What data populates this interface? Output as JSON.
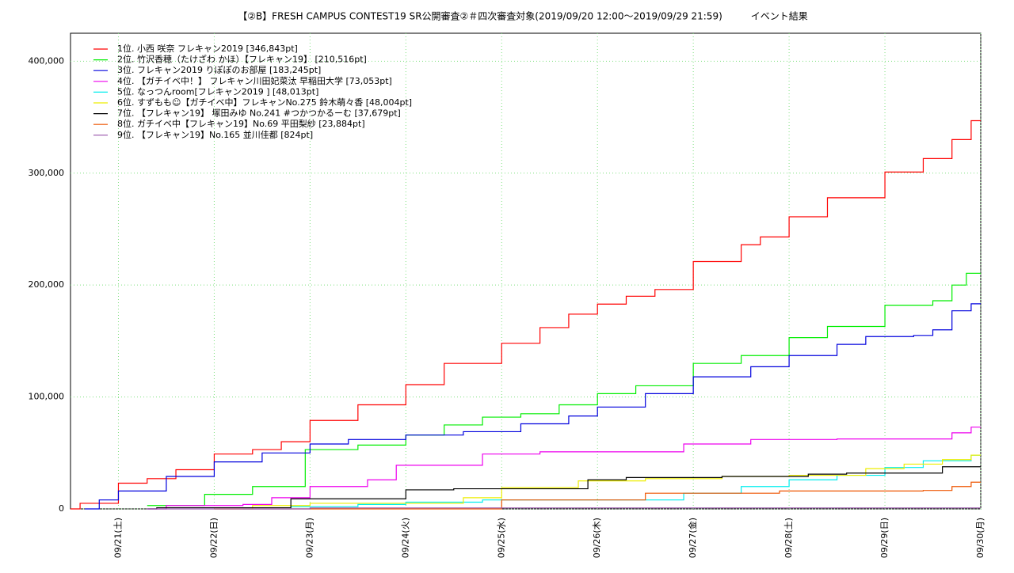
{
  "chart_data": {
    "type": "line",
    "title": "【②B】FRESH CAMPUS CONTEST19 SR公開審査②＃四次審査対象(2019/09/20 12:00～2019/09/29 21:59)　　　イベント結果",
    "xlim": [
      20.5,
      30
    ],
    "ylim": [
      0,
      425000
    ],
    "xticks": [
      {
        "value": 21,
        "label": "09/21(土)"
      },
      {
        "value": 22,
        "label": "09/22(日)"
      },
      {
        "value": 23,
        "label": "09/23(月)"
      },
      {
        "value": 24,
        "label": "09/24(火)"
      },
      {
        "value": 25,
        "label": "09/25(水)"
      },
      {
        "value": 26,
        "label": "09/26(木)"
      },
      {
        "value": 27,
        "label": "09/27(金)"
      },
      {
        "value": 28,
        "label": "09/28(土)"
      },
      {
        "value": 29,
        "label": "09/29(日)"
      },
      {
        "value": 30,
        "label": "09/30(月)"
      }
    ],
    "yticks": [
      0,
      {
        "value": 100000,
        "label": "100,000"
      },
      {
        "value": 200000,
        "label": "200,000"
      },
      {
        "value": 300000,
        "label": "300,000"
      },
      {
        "value": 400000,
        "label": "400,000"
      }
    ],
    "grid": true,
    "step": true,
    "legend": "top-left",
    "series": [
      {
        "name": "1位. 小西 咲奈 フレキャン2019 [346,843pt]",
        "color": "#ff0000",
        "x": [
          20.5,
          20.6,
          21.0,
          21.3,
          21.6,
          22.0,
          22.4,
          22.7,
          23.0,
          23.5,
          24.0,
          24.4,
          25.0,
          25.4,
          25.7,
          26.0,
          26.3,
          26.6,
          27.0,
          27.5,
          27.7,
          28.0,
          28.4,
          29.0,
          29.4,
          29.7,
          29.9,
          30.0
        ],
        "values": [
          0,
          5000,
          23000,
          27000,
          35000,
          49000,
          53000,
          60000,
          79000,
          93000,
          111000,
          130000,
          148000,
          162000,
          174000,
          183000,
          190000,
          196000,
          221000,
          236000,
          243000,
          261000,
          278000,
          301000,
          313000,
          330000,
          346843,
          346843
        ]
      },
      {
        "name": "2位. 竹沢香穂（たけざわ かほ）【フレキャン19】 [210,516pt]",
        "color": "#00ee00",
        "x": [
          21.3,
          21.9,
          22.4,
          22.95,
          23.5,
          24.0,
          24.4,
          24.8,
          25.2,
          25.6,
          26.0,
          26.4,
          27.0,
          27.5,
          28.0,
          28.4,
          29.0,
          29.5,
          29.7,
          29.85,
          30.0
        ],
        "values": [
          3000,
          13000,
          20000,
          53000,
          57000,
          66000,
          75000,
          82000,
          85000,
          93000,
          103000,
          110000,
          130000,
          137000,
          153000,
          163000,
          182000,
          186000,
          200000,
          210516,
          210516
        ]
      },
      {
        "name": "3位. フレキャン2019 りぽぽのお部屋 [183,245pt]",
        "color": "#0000dd",
        "x": [
          20.65,
          20.8,
          21.0,
          21.5,
          22.0,
          22.5,
          23.0,
          23.4,
          24.0,
          24.6,
          25.2,
          25.7,
          26.0,
          26.5,
          27.0,
          27.6,
          28.0,
          28.5,
          28.8,
          29.3,
          29.5,
          29.7,
          29.9,
          30.0
        ],
        "values": [
          0,
          8000,
          16000,
          29000,
          42000,
          50000,
          58000,
          62000,
          66000,
          69000,
          76000,
          83000,
          91000,
          103000,
          118000,
          127000,
          137000,
          147000,
          154000,
          155000,
          160000,
          177000,
          183245,
          183245
        ]
      },
      {
        "name": "4位. 【ガチイベ中！】 フレキャン川田妃菜汰 早稲田大学 [73,053pt]",
        "color": "#ee00ee",
        "x": [
          21.3,
          21.5,
          22.3,
          22.6,
          23.0,
          23.6,
          23.9,
          24.8,
          25.4,
          26.9,
          27.6,
          28.5,
          29.7,
          29.9,
          30.0
        ],
        "values": [
          0,
          3000,
          4000,
          10000,
          20000,
          26000,
          39000,
          49000,
          51000,
          58000,
          62000,
          62500,
          68000,
          73053,
          73053
        ]
      },
      {
        "name": "5位. なっつんroom[フレキャン2019 ] [48,013pt]",
        "color": "#00eeee",
        "x": [
          22.3,
          22.8,
          23.5,
          24.0,
          24.8,
          26.0,
          26.9,
          27.5,
          28.0,
          28.5,
          29.0,
          29.4,
          29.9,
          30.0
        ],
        "values": [
          0,
          2000,
          4000,
          6000,
          8000,
          8000,
          14000,
          20000,
          26000,
          30000,
          37000,
          43000,
          48013,
          48013
        ]
      },
      {
        "name": "6位. すずもも☺【ガチイベ中】フレキャンNo.275 鈴木萌々香 [48,004pt]",
        "color": "#eeee00",
        "x": [
          22.0,
          22.4,
          23.0,
          24.6,
          25.0,
          25.8,
          26.5,
          27.3,
          28.0,
          28.8,
          29.2,
          29.6,
          29.9,
          30.0
        ],
        "values": [
          0,
          3000,
          5000,
          10000,
          19000,
          25000,
          27000,
          29000,
          30000,
          36000,
          40000,
          44000,
          48004,
          48004
        ]
      },
      {
        "name": "7位. 【フレキャン19】 塚田みゆ No.241 #つかつかるーむ [37,679pt]",
        "color": "#000000",
        "x": [
          21.3,
          21.4,
          22.8,
          24.0,
          24.5,
          25.9,
          26.3,
          27.3,
          28.2,
          28.6,
          29.6,
          30.0
        ],
        "values": [
          0,
          1000,
          9000,
          17000,
          18000,
          26000,
          28000,
          29000,
          31000,
          32000,
          37679,
          37679
        ]
      },
      {
        "name": "8位. ガチイベ中【フレキャン19】No.69 平田梨紗 [23,884pt]",
        "color": "#ee5500",
        "x": [
          22.0,
          25.0,
          26.5,
          27.9,
          29.4,
          29.7,
          29.9,
          30.0
        ],
        "values": [
          0,
          8000,
          14000,
          16000,
          16500,
          20000,
          23884,
          23884
        ]
      },
      {
        "name": "9位. 【フレキャン19】No.165 並川佳都 [824pt]",
        "color": "#9955aa",
        "x": [
          21.3,
          23.0,
          30.0
        ],
        "values": [
          0,
          824,
          824
        ]
      }
    ]
  }
}
